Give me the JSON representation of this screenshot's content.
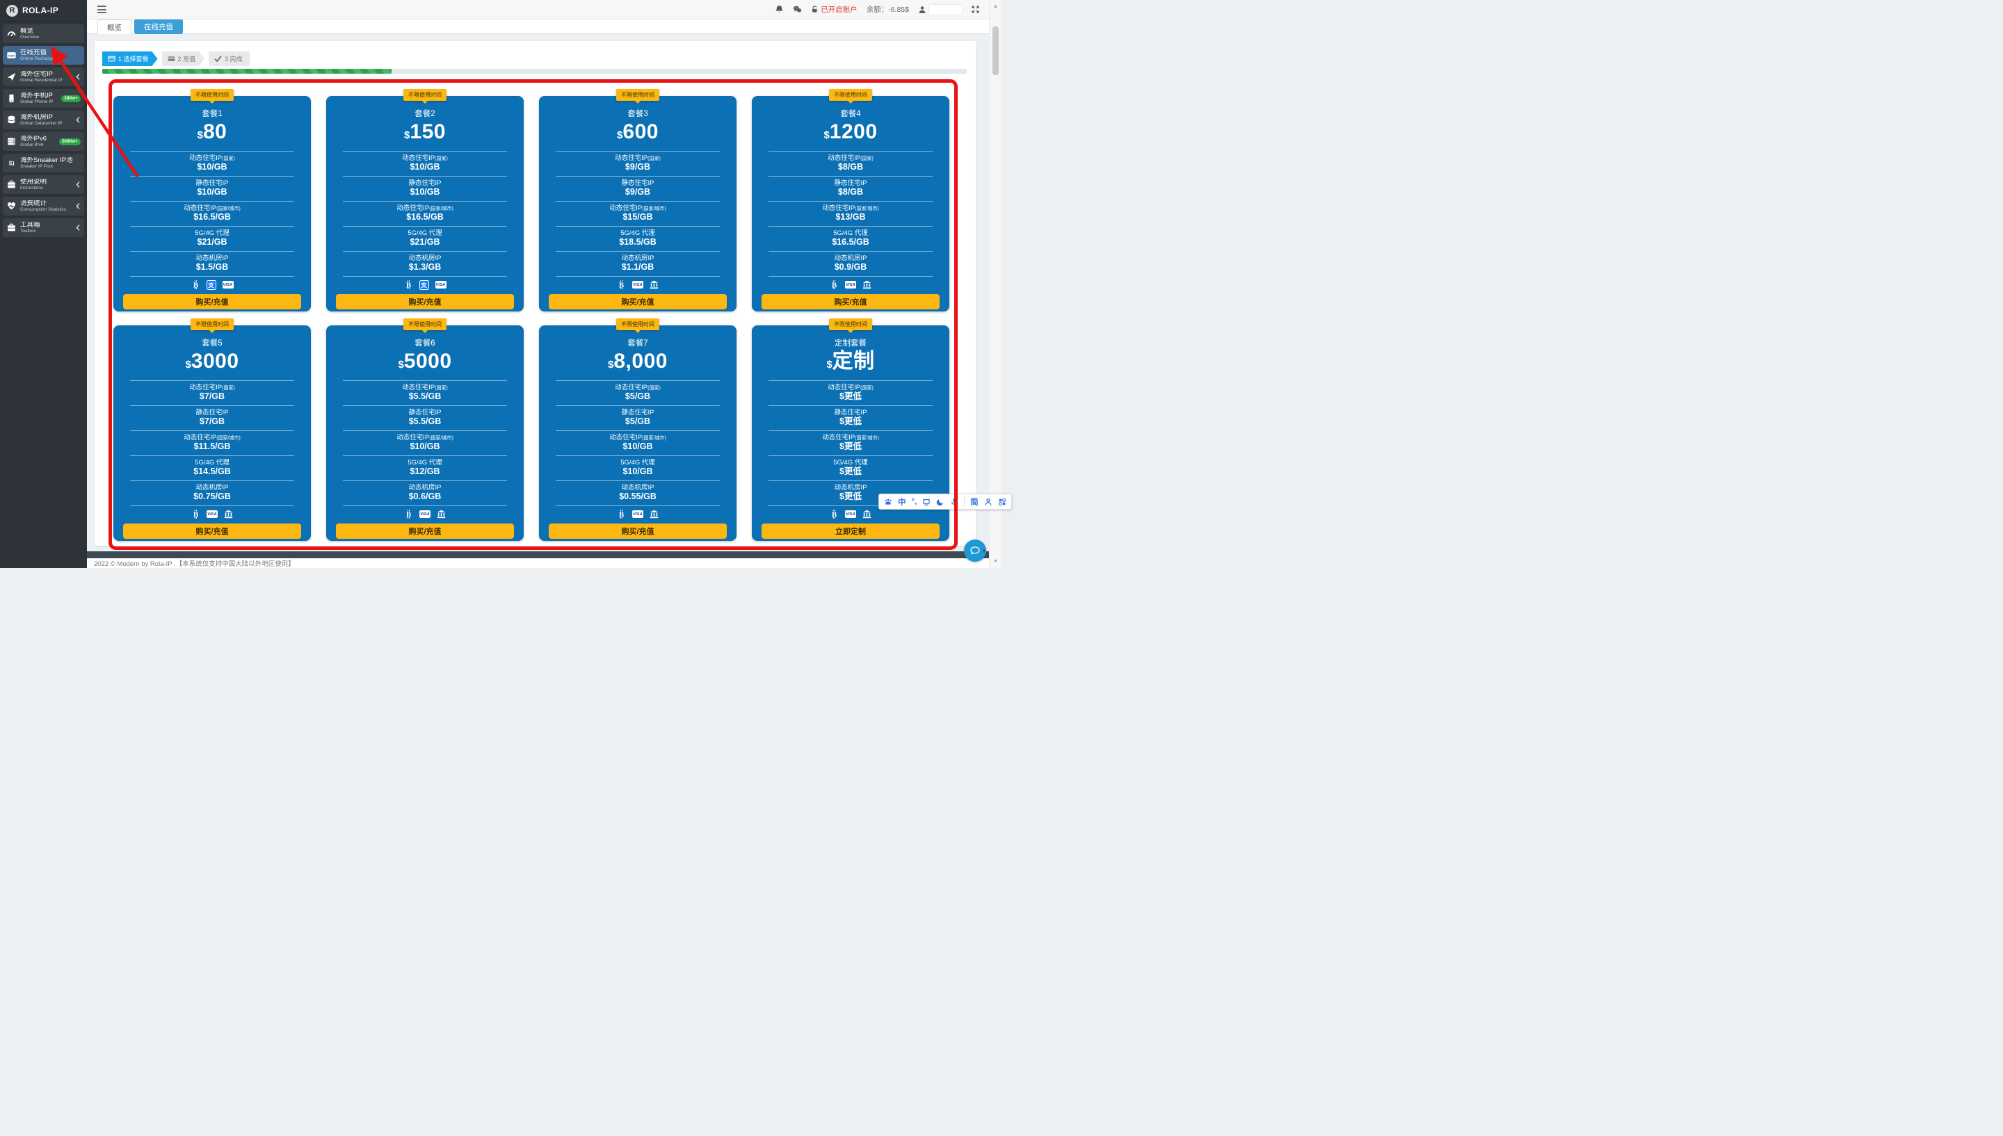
{
  "brand": {
    "logo_letter": "R",
    "name": "ROLA-IP"
  },
  "sidebar": {
    "items": [
      {
        "id": "overview",
        "icon": "gauge",
        "title": "概览",
        "subtitle": "Overview",
        "active": false
      },
      {
        "id": "online-recharge",
        "icon": "visa-card",
        "title": "在线充值",
        "subtitle": "Online Recharge",
        "active": true
      },
      {
        "id": "residential-ip",
        "icon": "paper-plane",
        "title": "海外住宅IP",
        "subtitle": "Global Residential IP",
        "chevron": true
      },
      {
        "id": "phone-ip",
        "icon": "mobile",
        "title": "海外手机IP",
        "subtitle": "Global Phone IP",
        "badge": "280w+"
      },
      {
        "id": "datacenter-ip",
        "icon": "database",
        "title": "海外机房IP",
        "subtitle": "Global Datacenter IP",
        "chevron": true
      },
      {
        "id": "ipv6",
        "icon": "server",
        "title": "海外IPv6",
        "subtitle": "Global IPv6",
        "badge": "2000w+"
      },
      {
        "id": "sneaker-pool",
        "icon": "sneaker",
        "title": "海外Sneaker IP池",
        "subtitle": "Sneaker IP Pool"
      },
      {
        "id": "instructions",
        "icon": "toolbox",
        "title": "使用说明",
        "subtitle": "Instructions",
        "chevron": true
      },
      {
        "id": "consumption-stats",
        "icon": "heart-pulse",
        "title": "消费统计",
        "subtitle": "Consumption Statistics",
        "chevron": true
      },
      {
        "id": "toolbox",
        "icon": "toolbox",
        "title": "工具箱",
        "subtitle": "Toolbox",
        "chevron": true
      }
    ]
  },
  "header": {
    "account_status": "已开启账户",
    "balance_label": "余额：",
    "balance_value": "-6.85$"
  },
  "tabs": [
    {
      "label": "概览",
      "active": false
    },
    {
      "label": "在线充值",
      "active": true
    }
  ],
  "wizard": {
    "steps": [
      {
        "icon": "card",
        "label": "1.选择套餐",
        "active": true
      },
      {
        "icon": "credit-card",
        "label": "2.充值",
        "active": false
      },
      {
        "icon": "check",
        "label": "3.完成",
        "active": false
      }
    ],
    "progress_percent": 33.5
  },
  "plans": [
    {
      "ribbon": "不限使用时间",
      "name": "套餐1",
      "currency": "$",
      "price": "80",
      "features": [
        {
          "label": "动态住宅IP",
          "label_sub": "(国家)",
          "price": "$10/GB"
        },
        {
          "label": "静态住宅IP",
          "label_sub": "",
          "price": "$10/GB"
        },
        {
          "label": "动态住宅IP",
          "label_sub": "(国家/城市)",
          "price": "$16.5/GB"
        },
        {
          "label": "5G/4G 代理",
          "label_sub": "",
          "price": "$21/GB"
        },
        {
          "label": "动态机房IP",
          "label_sub": "",
          "price": "$1.5/GB"
        }
      ],
      "payments": [
        "bitcoin",
        "alipay",
        "visa"
      ],
      "button": "购买/充值"
    },
    {
      "ribbon": "不限使用时间",
      "name": "套餐2",
      "currency": "$",
      "price": "150",
      "features": [
        {
          "label": "动态住宅IP",
          "label_sub": "(国家)",
          "price": "$10/GB"
        },
        {
          "label": "静态住宅IP",
          "label_sub": "",
          "price": "$10/GB"
        },
        {
          "label": "动态住宅IP",
          "label_sub": "(国家/城市)",
          "price": "$16.5/GB"
        },
        {
          "label": "5G/4G 代理",
          "label_sub": "",
          "price": "$21/GB"
        },
        {
          "label": "动态机房IP",
          "label_sub": "",
          "price": "$1.3/GB"
        }
      ],
      "payments": [
        "bitcoin",
        "alipay",
        "visa"
      ],
      "button": "购买/充值"
    },
    {
      "ribbon": "不限使用时间",
      "name": "套餐3",
      "currency": "$",
      "price": "600",
      "features": [
        {
          "label": "动态住宅IP",
          "label_sub": "(国家)",
          "price": "$9/GB"
        },
        {
          "label": "静态住宅IP",
          "label_sub": "",
          "price": "$9/GB"
        },
        {
          "label": "动态住宅IP",
          "label_sub": "(国家/城市)",
          "price": "$15/GB"
        },
        {
          "label": "5G/4G 代理",
          "label_sub": "",
          "price": "$18.5/GB"
        },
        {
          "label": "动态机房IP",
          "label_sub": "",
          "price": "$1.1/GB"
        }
      ],
      "payments": [
        "bitcoin",
        "visa",
        "bank"
      ],
      "button": "购买/充值"
    },
    {
      "ribbon": "不限使用时间",
      "name": "套餐4",
      "currency": "$",
      "price": "1200",
      "features": [
        {
          "label": "动态住宅IP",
          "label_sub": "(国家)",
          "price": "$8/GB"
        },
        {
          "label": "静态住宅IP",
          "label_sub": "",
          "price": "$8/GB"
        },
        {
          "label": "动态住宅IP",
          "label_sub": "(国家/城市)",
          "price": "$13/GB"
        },
        {
          "label": "5G/4G 代理",
          "label_sub": "",
          "price": "$16.5/GB"
        },
        {
          "label": "动态机房IP",
          "label_sub": "",
          "price": "$0.9/GB"
        }
      ],
      "payments": [
        "bitcoin",
        "visa",
        "bank"
      ],
      "button": "购买/充值"
    },
    {
      "ribbon": "不限使用时间",
      "name": "套餐5",
      "currency": "$",
      "price": "3000",
      "features": [
        {
          "label": "动态住宅IP",
          "label_sub": "(国家)",
          "price": "$7/GB"
        },
        {
          "label": "静态住宅IP",
          "label_sub": "",
          "price": "$7/GB"
        },
        {
          "label": "动态住宅IP",
          "label_sub": "(国家/城市)",
          "price": "$11.5/GB"
        },
        {
          "label": "5G/4G 代理",
          "label_sub": "",
          "price": "$14.5/GB"
        },
        {
          "label": "动态机房IP",
          "label_sub": "",
          "price": "$0.75/GB"
        }
      ],
      "payments": [
        "bitcoin",
        "visa",
        "bank"
      ],
      "button": "购买/充值"
    },
    {
      "ribbon": "不限使用时间",
      "name": "套餐6",
      "currency": "$",
      "price": "5000",
      "features": [
        {
          "label": "动态住宅IP",
          "label_sub": "(国家)",
          "price": "$5.5/GB"
        },
        {
          "label": "静态住宅IP",
          "label_sub": "",
          "price": "$5.5/GB"
        },
        {
          "label": "动态住宅IP",
          "label_sub": "(国家/城市)",
          "price": "$10/GB"
        },
        {
          "label": "5G/4G 代理",
          "label_sub": "",
          "price": "$12/GB"
        },
        {
          "label": "动态机房IP",
          "label_sub": "",
          "price": "$0.6/GB"
        }
      ],
      "payments": [
        "bitcoin",
        "visa",
        "bank"
      ],
      "button": "购买/充值"
    },
    {
      "ribbon": "不限使用时间",
      "name": "套餐7",
      "currency": "$",
      "price": "8,000",
      "features": [
        {
          "label": "动态住宅IP",
          "label_sub": "(国家)",
          "price": "$5/GB"
        },
        {
          "label": "静态住宅IP",
          "label_sub": "",
          "price": "$5/GB"
        },
        {
          "label": "动态住宅IP",
          "label_sub": "(国家/城市)",
          "price": "$10/GB"
        },
        {
          "label": "5G/4G 代理",
          "label_sub": "",
          "price": "$10/GB"
        },
        {
          "label": "动态机房IP",
          "label_sub": "",
          "price": "$0.55/GB"
        }
      ],
      "payments": [
        "bitcoin",
        "visa",
        "bank"
      ],
      "button": "购买/充值"
    },
    {
      "ribbon": "不限使用时间",
      "name": "定制套餐",
      "currency": "$",
      "price": "定制",
      "features": [
        {
          "label": "动态住宅IP",
          "label_sub": "(国家)",
          "price": "$更低"
        },
        {
          "label": "静态住宅IP",
          "label_sub": "",
          "price": "$更低"
        },
        {
          "label": "动态住宅IP",
          "label_sub": "(国家/城市)",
          "price": "$更低"
        },
        {
          "label": "5G/4G 代理",
          "label_sub": "",
          "price": "$更低"
        },
        {
          "label": "动态机房IP",
          "label_sub": "",
          "price": "$更低"
        }
      ],
      "payments": [
        "bitcoin",
        "visa",
        "bank"
      ],
      "button": "立即定制"
    }
  ],
  "ime_toolbar": {
    "items": [
      {
        "icon": "paw",
        "name": "ime-logo"
      },
      {
        "text": "中",
        "name": "ime-chinese-mode"
      },
      {
        "text": "°,",
        "name": "ime-punctuation-mode"
      },
      {
        "icon": "tray",
        "name": "ime-keyboard"
      },
      {
        "icon": "moon",
        "name": "ime-night-mode"
      },
      {
        "icon": "mic",
        "name": "ime-voice"
      },
      {
        "divider": true
      },
      {
        "text": "简",
        "name": "ime-simplified"
      },
      {
        "icon": "person",
        "name": "ime-account"
      },
      {
        "icon": "grid",
        "name": "ime-apps"
      }
    ]
  },
  "footer": {
    "copyright": "2022 © Modern by Rola-IP .【本系统仅支持中国大陆以外地区使用】"
  },
  "colors": {
    "card_blue": "#0b70b4",
    "ribbon_yellow": "#fcb712",
    "button_yellow": "#fcb712",
    "tab_active_blue": "#3c9fd8",
    "step_active_blue": "#18a3e8",
    "badge_green": "#28a745",
    "sidebar_active_blue": "#41678f",
    "annotation_red": "#e81212",
    "progress_green": "#2ca04c"
  }
}
